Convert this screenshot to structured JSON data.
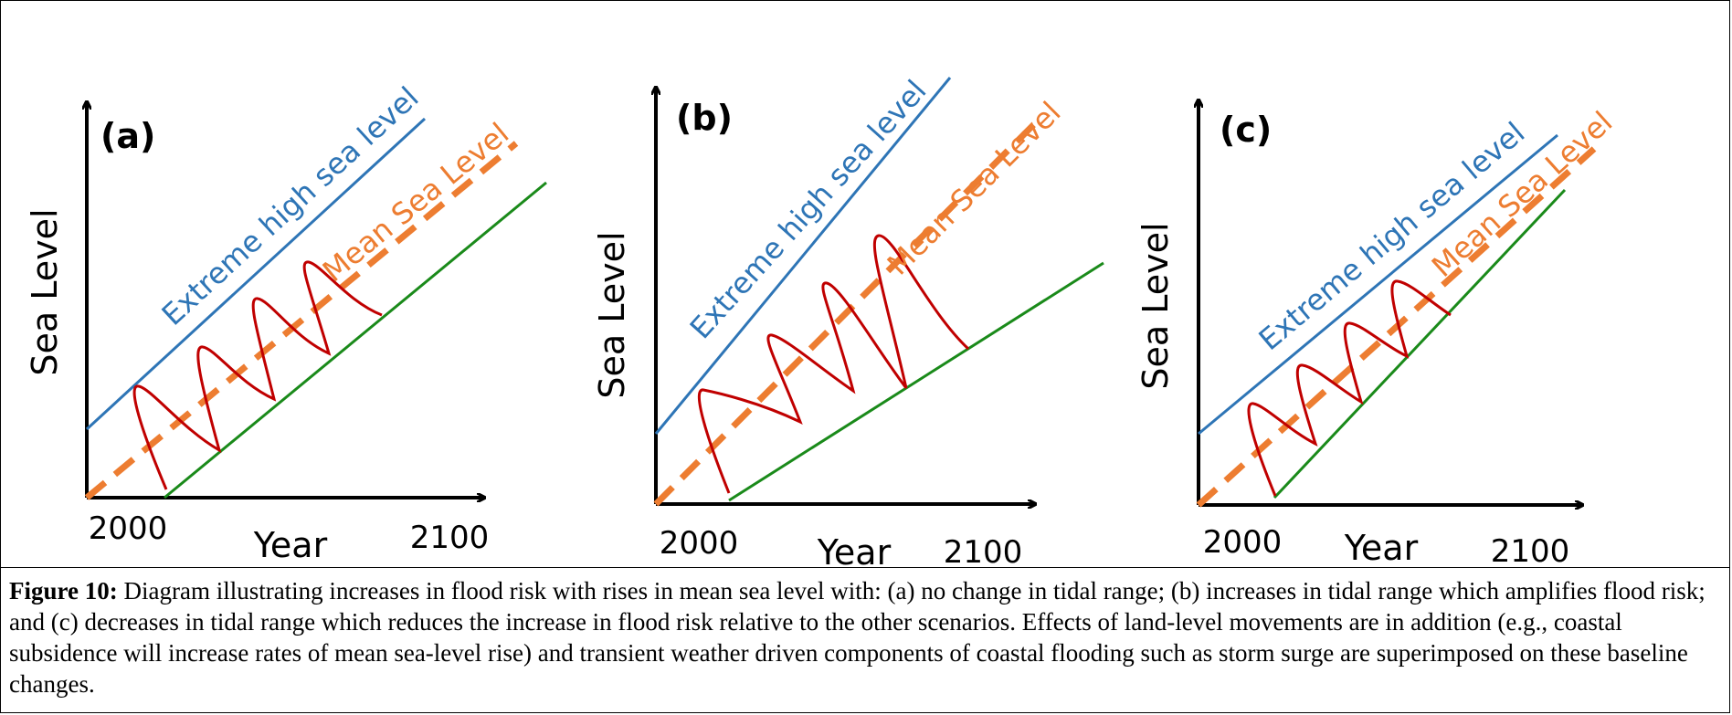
{
  "panels": [
    {
      "label": "(a)",
      "ylabel": "Sea Level",
      "xlabel": "Year",
      "x_start": "2000",
      "x_end": "2100",
      "extreme_label": "Extreme high sea level",
      "mean_label": "Mean Sea Level",
      "tidal_range_change": "none"
    },
    {
      "label": "(b)",
      "ylabel": "Sea Level",
      "xlabel": "Year",
      "x_start": "2000",
      "x_end": "2100",
      "extreme_label": "Extreme high sea level",
      "mean_label": "Mean Sea Level",
      "tidal_range_change": "increase"
    },
    {
      "label": "(c)",
      "ylabel": "Sea Level",
      "xlabel": "Year",
      "x_start": "2000",
      "x_end": "2100",
      "extreme_label": "Extreme high sea level",
      "mean_label": "Mean Sea Level",
      "tidal_range_change": "decrease"
    }
  ],
  "colors": {
    "extreme": "#2e75b6",
    "mean": "#ed7d31",
    "low": "#1a8a1a",
    "tide": "#c00000",
    "axis": "#000000"
  },
  "caption": {
    "label": "Figure 10:",
    "text": " Diagram illustrating increases in flood risk with rises in mean sea level with: (a) no change in tidal range; (b) increases in tidal range which amplifies flood risk; and (c) decreases in tidal range which reduces the increase in flood risk relative to the other scenarios. Effects of land-level movements are in addition (e.g., coastal subsidence will increase rates of mean sea-level rise) and transient weather driven components of coastal flooding such as storm surge are superimposed on these baseline changes."
  }
}
